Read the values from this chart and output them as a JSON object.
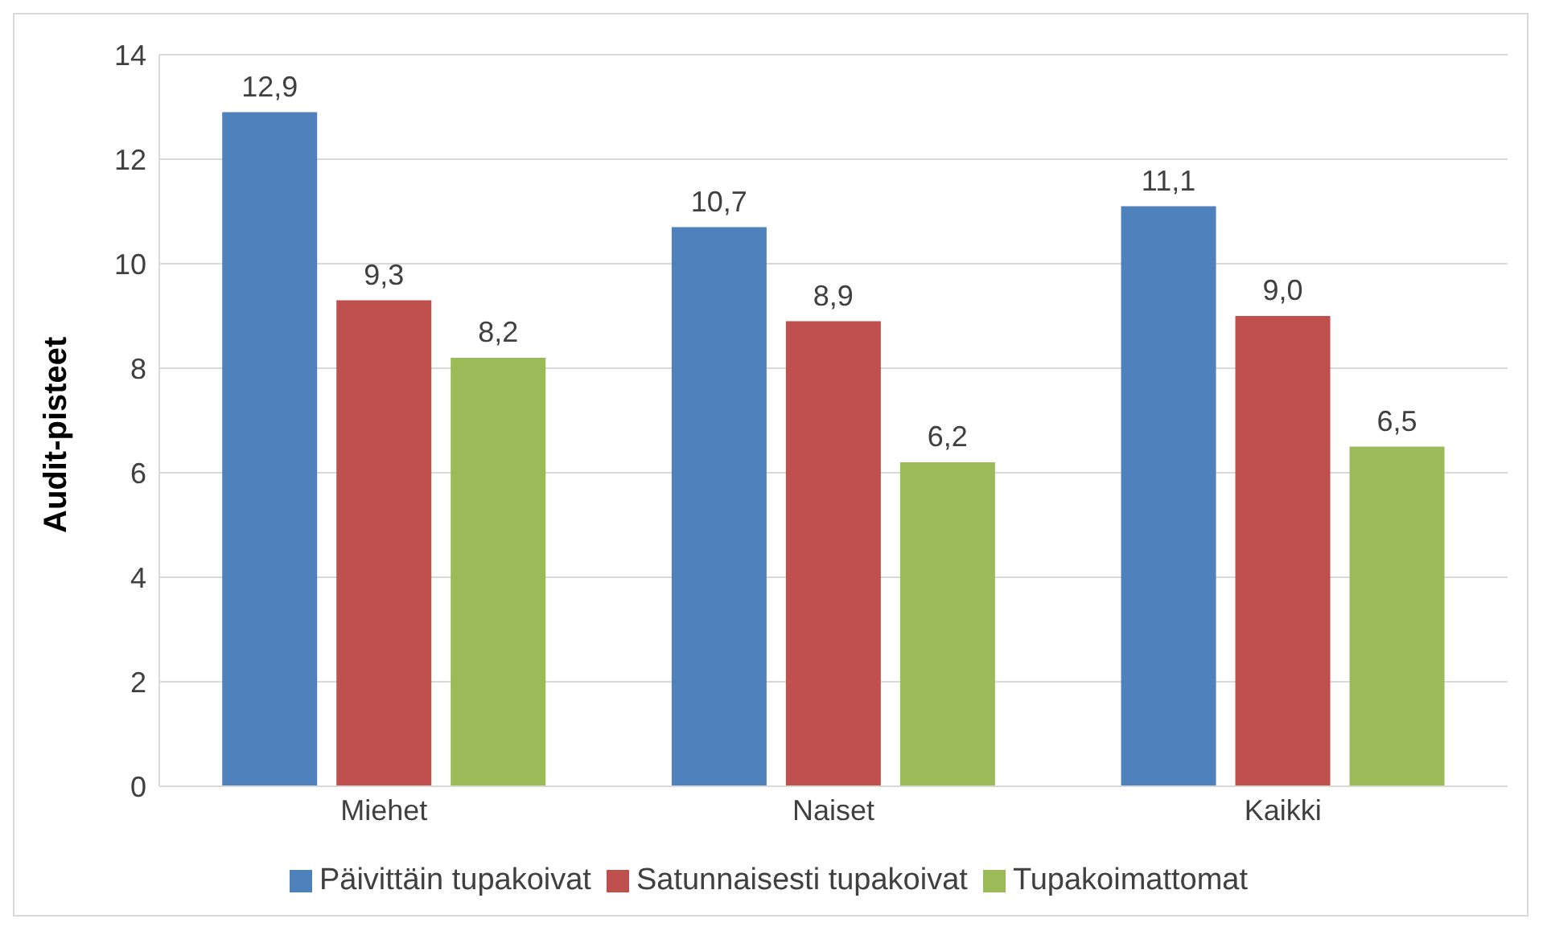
{
  "chart_data": {
    "type": "bar",
    "ylabel": "Audit-pisteet",
    "categories": [
      "Miehet",
      "Naiset",
      "Kaikki"
    ],
    "series": [
      {
        "name": "Päivittäin tupakoivat",
        "color": "#4f81bd",
        "values": [
          12.9,
          10.7,
          11.1
        ],
        "value_labels": [
          "12,9",
          "10,7",
          "11,1"
        ]
      },
      {
        "name": "Satunnaisesti tupakoivat",
        "color": "#c0504d",
        "values": [
          9.3,
          8.9,
          9.0
        ],
        "value_labels": [
          "9,3",
          "8,9",
          "9,0"
        ]
      },
      {
        "name": "Tupakoimattomat",
        "color": "#9bbb59",
        "values": [
          8.2,
          6.2,
          6.5
        ],
        "value_labels": [
          "8,2",
          "6,2",
          "6,5"
        ]
      }
    ],
    "ylim": [
      0,
      14
    ],
    "yticks": [
      0,
      2,
      4,
      6,
      8,
      10,
      12,
      14
    ],
    "grid": "y",
    "legend": "bottom"
  }
}
